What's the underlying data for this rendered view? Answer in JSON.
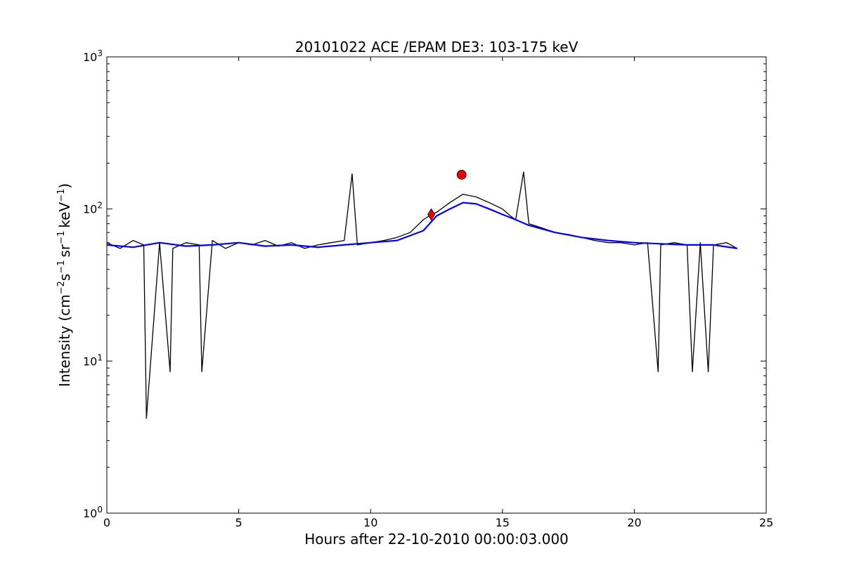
{
  "chart_data": {
    "type": "line",
    "title": "20101022 ACE /EPAM DE3: 103-175 keV",
    "xlabel": "Hours after 22-10-2010 00:00:03.000",
    "ylabel": {
      "prefix": "Intensity (cm",
      "exp1": "−2",
      "mid1": "s",
      "exp2": "−1",
      "mid2": "sr",
      "exp3": "−1",
      "mid3": "keV",
      "exp4": "−1",
      "suffix": ")"
    },
    "xlim": [
      0,
      25
    ],
    "ylim": [
      1,
      1000
    ],
    "y_scale": "log",
    "x_ticks": [
      0,
      5,
      10,
      15,
      20,
      25
    ],
    "x_tick_labels": [
      "0",
      "5",
      "10",
      "15",
      "20",
      "25"
    ],
    "y_ticks": [
      1,
      10,
      100,
      1000
    ],
    "y_tick_labels": [
      {
        "base": "10",
        "exp": "0"
      },
      {
        "base": "10",
        "exp": "1"
      },
      {
        "base": "10",
        "exp": "2"
      },
      {
        "base": "10",
        "exp": "3"
      }
    ],
    "grid": false,
    "series": [
      {
        "color": "#000000",
        "x": [
          0.0,
          0.5,
          1.0,
          1.4,
          1.5,
          2.0,
          2.4,
          2.5,
          3.0,
          3.5,
          3.6,
          4.0,
          4.5,
          5.0,
          5.5,
          6.0,
          6.5,
          7.0,
          7.5,
          8.0,
          8.5,
          9.0,
          9.3,
          9.5,
          10.0,
          10.5,
          11.0,
          11.5,
          12.0,
          12.3,
          12.5,
          13.0,
          13.5,
          14.0,
          14.5,
          15.0,
          15.3,
          15.5,
          15.8,
          16.0,
          16.5,
          17.0,
          17.5,
          18.0,
          18.5,
          19.0,
          19.5,
          20.0,
          20.5,
          20.9,
          21.0,
          21.5,
          22.0,
          22.2,
          22.5,
          22.8,
          23.0,
          23.5,
          23.9
        ],
        "y": [
          60,
          55,
          62,
          58,
          4.2,
          60,
          8.5,
          55,
          60,
          58,
          8.5,
          62,
          55,
          60,
          58,
          62,
          57,
          60,
          55,
          58,
          60,
          62,
          170,
          58,
          60,
          62,
          65,
          70,
          85,
          92,
          95,
          110,
          125,
          120,
          110,
          100,
          90,
          85,
          175,
          80,
          75,
          70,
          68,
          65,
          62,
          60,
          60,
          58,
          60,
          8.5,
          58,
          60,
          58,
          8.5,
          60,
          8.5,
          58,
          60,
          55
        ]
      },
      {
        "color": "#0000ff",
        "x": [
          0.0,
          1.0,
          2.0,
          3.0,
          4.0,
          5.0,
          6.0,
          7.0,
          8.0,
          9.0,
          10.0,
          11.0,
          12.0,
          12.5,
          13.0,
          13.5,
          14.0,
          14.5,
          15.0,
          15.5,
          16.0,
          17.0,
          18.0,
          19.0,
          20.0,
          21.0,
          22.0,
          23.0,
          23.9
        ],
        "y": [
          58,
          56,
          60,
          57,
          58,
          60,
          57,
          58,
          56,
          58,
          60,
          62,
          72,
          90,
          100,
          110,
          108,
          100,
          92,
          85,
          78,
          70,
          65,
          62,
          60,
          59,
          58,
          58,
          55
        ]
      }
    ],
    "markers": [
      {
        "x": 12.3,
        "y": 92,
        "shape": "diamond",
        "color": "#ee0000"
      },
      {
        "x": 13.45,
        "y": 168,
        "shape": "circle",
        "color": "#ee0000"
      }
    ]
  }
}
